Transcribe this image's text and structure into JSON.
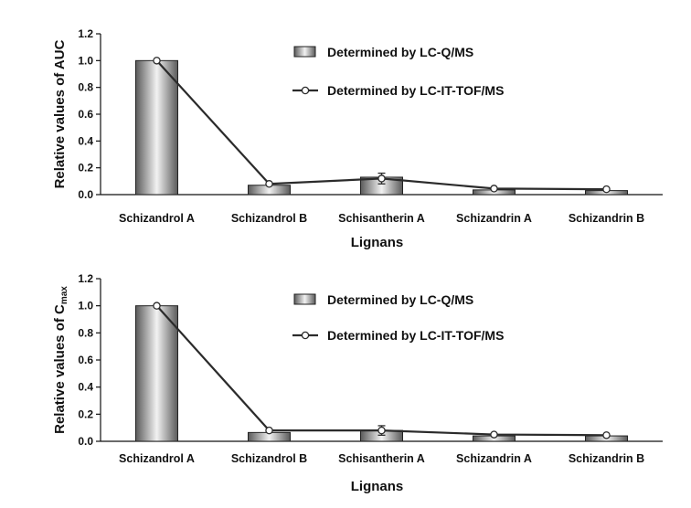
{
  "colors": {
    "bar_edge": "#222222",
    "bar_dark": "#5a5a5a",
    "bar_light": "#f2f2f2",
    "line": "#2b2b2b",
    "marker_fill": "#ffffff",
    "axis": "#111111"
  },
  "chart_data": [
    {
      "type": "bar",
      "title": "",
      "xlabel": "Lignans",
      "ylabel": "Relative values of AUC",
      "ylabel_main": "Relative values of AUC",
      "ylim": [
        0,
        1.2
      ],
      "yticks": [
        "0.0",
        "0.2",
        "0.4",
        "0.6",
        "0.8",
        "1.0",
        "1.2"
      ],
      "categories": [
        "Schizandrol A",
        "Schizandrol B",
        "Schisantherin A",
        "Schizandrin A",
        "Schizandrin B"
      ],
      "legend_position": "top-right",
      "series": [
        {
          "name": "Determined by LC-Q/MS",
          "kind": "bar",
          "values": [
            1.0,
            0.07,
            0.13,
            0.035,
            0.03
          ]
        },
        {
          "name": "Determined by LC-IT-TOF/MS",
          "kind": "line",
          "values": [
            1.0,
            0.08,
            0.12,
            0.045,
            0.04
          ],
          "errors": [
            0,
            0,
            0.04,
            0,
            0
          ]
        }
      ]
    },
    {
      "type": "bar",
      "title": "",
      "xlabel": "Lignans",
      "ylabel": "Relative values of Cmax",
      "ylabel_main": "Relative values of C",
      "ylabel_sub": "max",
      "ylim": [
        0,
        1.2
      ],
      "yticks": [
        "0.0",
        "0.2",
        "0.4",
        "0.6",
        "0.8",
        "1.0",
        "1.2"
      ],
      "categories": [
        "Schizandrol A",
        "Schizandrol B",
        "Schisantherin A",
        "Schizandrin A",
        "Schizandrin B"
      ],
      "legend_position": "top-right",
      "series": [
        {
          "name": "Determined by LC-Q/MS",
          "kind": "bar",
          "values": [
            1.0,
            0.065,
            0.08,
            0.04,
            0.04
          ]
        },
        {
          "name": "Determined by LC-IT-TOF/MS",
          "kind": "line",
          "values": [
            1.0,
            0.08,
            0.08,
            0.05,
            0.045
          ],
          "errors": [
            0,
            0,
            0.035,
            0,
            0
          ]
        }
      ]
    }
  ]
}
